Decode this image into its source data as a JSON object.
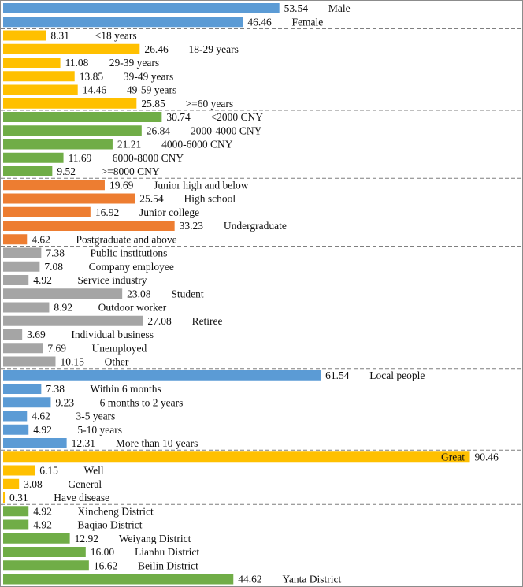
{
  "chart_data": {
    "type": "bar",
    "orientation": "horizontal",
    "grid": false,
    "legend": "none",
    "xlim": [
      0,
      100
    ],
    "groups": [
      {
        "color": "#5b9bd5",
        "bars": [
          {
            "label": "Male",
            "value": 53.54,
            "value_text": "53.54"
          },
          {
            "label": "Female",
            "value": 46.46,
            "value_text": "46.46"
          }
        ]
      },
      {
        "color": "#ffc000",
        "bars": [
          {
            "label": "<18 years",
            "value": 8.31,
            "value_text": "8.31"
          },
          {
            "label": "18-29 years",
            "value": 26.46,
            "value_text": "26.46"
          },
          {
            "label": "29-39 years",
            "value": 11.08,
            "value_text": "11.08"
          },
          {
            "label": "39-49 years",
            "value": 13.85,
            "value_text": "13.85"
          },
          {
            "label": "49-59 years",
            "value": 14.46,
            "value_text": "14.46"
          },
          {
            "label": ">=60 years",
            "value": 25.85,
            "value_text": "25.85"
          }
        ]
      },
      {
        "color": "#70ad47",
        "bars": [
          {
            "label": "<2000 CNY",
            "value": 30.74,
            "value_text": "30.74"
          },
          {
            "label": "2000-4000 CNY",
            "value": 26.84,
            "value_text": "26.84"
          },
          {
            "label": "4000-6000 CNY",
            "value": 21.21,
            "value_text": "21.21"
          },
          {
            "label": "6000-8000 CNY",
            "value": 11.69,
            "value_text": "11.69"
          },
          {
            "label": ">=8000 CNY",
            "value": 9.52,
            "value_text": "9.52"
          }
        ]
      },
      {
        "color": "#ed7d31",
        "bars": [
          {
            "label": "Junior high and below",
            "value": 19.69,
            "value_text": "19.69"
          },
          {
            "label": "High school",
            "value": 25.54,
            "value_text": "25.54"
          },
          {
            "label": "Junior college",
            "value": 16.92,
            "value_text": "16.92"
          },
          {
            "label": "Undergraduate",
            "value": 33.23,
            "value_text": "33.23"
          },
          {
            "label": "Postgraduate and above",
            "value": 4.62,
            "value_text": "4.62"
          }
        ]
      },
      {
        "color": "#a5a5a5",
        "bars": [
          {
            "label": "Public institutions",
            "value": 7.38,
            "value_text": "7.38"
          },
          {
            "label": "Company employee",
            "value": 7.08,
            "value_text": "7.08"
          },
          {
            "label": "Service industry",
            "value": 4.92,
            "value_text": "4.92"
          },
          {
            "label": "Student",
            "value": 23.08,
            "value_text": "23.08"
          },
          {
            "label": "Outdoor worker",
            "value": 8.92,
            "value_text": "8.92"
          },
          {
            "label": "Retiree",
            "value": 27.08,
            "value_text": "27.08"
          },
          {
            "label": "Individual business",
            "value": 3.69,
            "value_text": "3.69"
          },
          {
            "label": "Unemployed",
            "value": 7.69,
            "value_text": "7.69"
          },
          {
            "label": "Other",
            "value": 10.15,
            "value_text": "10.15"
          }
        ]
      },
      {
        "color": "#5b9bd5",
        "bars": [
          {
            "label": "Local people",
            "value": 61.54,
            "value_text": "61.54"
          },
          {
            "label": "Within 6 months",
            "value": 7.38,
            "value_text": "7.38"
          },
          {
            "label": "6 months to 2 years",
            "value": 9.23,
            "value_text": "9.23"
          },
          {
            "label": "3-5 years",
            "value": 4.62,
            "value_text": "4.62"
          },
          {
            "label": "5-10 years",
            "value": 4.92,
            "value_text": "4.92"
          },
          {
            "label": "More than 10 years",
            "value": 12.31,
            "value_text": "12.31"
          }
        ]
      },
      {
        "color": "#ffc000",
        "bars": [
          {
            "label": "Great",
            "value": 90.46,
            "value_text": "90.46"
          },
          {
            "label": "Well",
            "value": 6.15,
            "value_text": "6.15"
          },
          {
            "label": "General",
            "value": 3.08,
            "value_text": "3.08"
          },
          {
            "label": "Have disease",
            "value": 0.31,
            "value_text": "0.31"
          }
        ]
      },
      {
        "color": "#70ad47",
        "bars": [
          {
            "label": "Xincheng District",
            "value": 4.92,
            "value_text": "4.92"
          },
          {
            "label": "Baqiao District",
            "value": 4.92,
            "value_text": "4.92"
          },
          {
            "label": "Weiyang District",
            "value": 12.92,
            "value_text": "12.92"
          },
          {
            "label": "Lianhu District",
            "value": 16.0,
            "value_text": "16.00"
          },
          {
            "label": "Beilin District",
            "value": 16.62,
            "value_text": "16.62"
          },
          {
            "label": "Yanta District",
            "value": 44.62,
            "value_text": "44.62"
          }
        ]
      }
    ]
  }
}
